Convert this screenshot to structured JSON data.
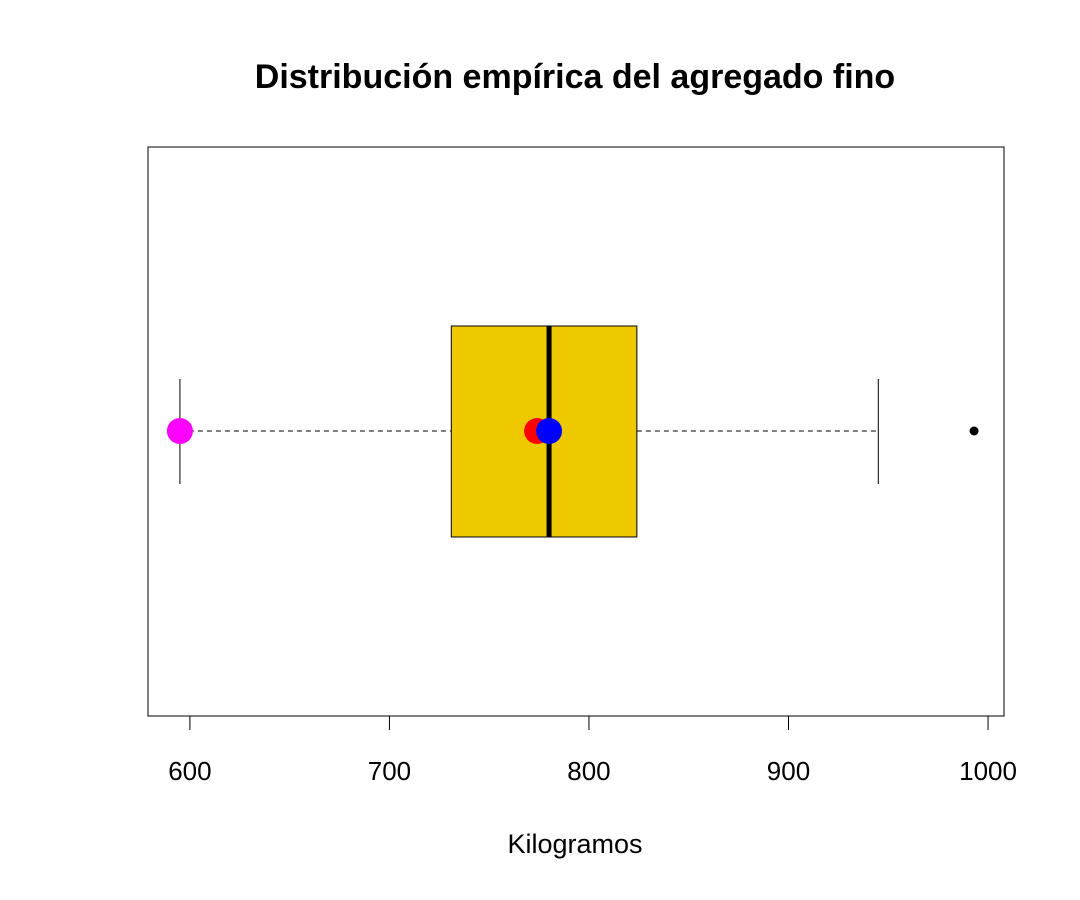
{
  "chart_data": {
    "type": "box",
    "title": "Distribución empírica del agregado fino",
    "xlabel": "Kilogramos",
    "ylabel": "",
    "xlim": [
      579,
      1008
    ],
    "ticks": [
      600,
      700,
      800,
      900,
      1000
    ],
    "tick_labels": [
      "600",
      "700",
      "800",
      "900",
      "1000"
    ],
    "grid": false,
    "orientation": "horizontal",
    "box": {
      "whisker_low": 595,
      "q1": 731,
      "median": 780,
      "q3": 824,
      "whisker_high": 945,
      "outliers": [
        993
      ],
      "fill": "#EEC900"
    },
    "markers": [
      {
        "value": 595,
        "color": "#FF00FF"
      },
      {
        "value": 774,
        "color": "#FF0000"
      },
      {
        "value": 780,
        "color": "#0000FF"
      }
    ]
  }
}
